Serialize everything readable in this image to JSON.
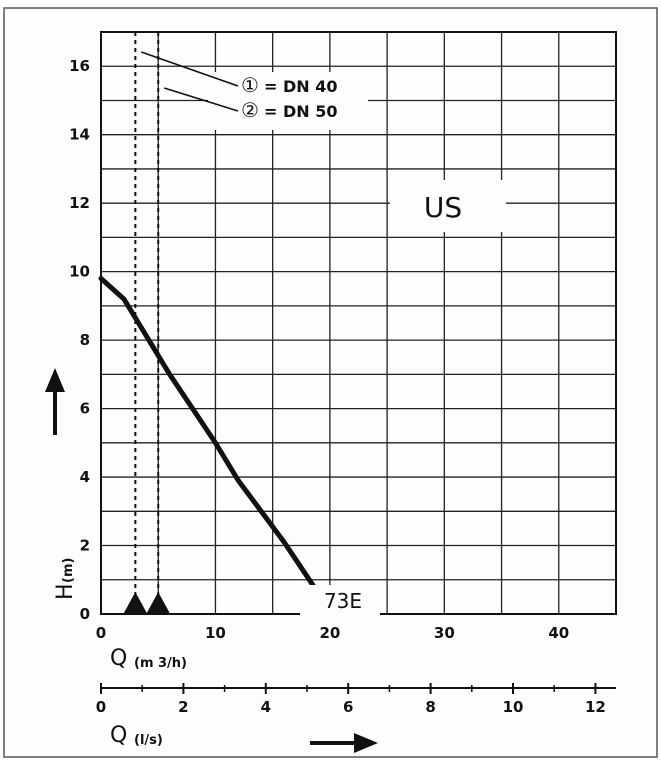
{
  "chart_data": {
    "type": "line",
    "title": "",
    "ylabel": "H",
    "ylabel_unit": "(m)",
    "xlabel": "Q",
    "xlabel_unit": "(m 3/h)",
    "xlabel2": "Q",
    "xlabel2_unit": "(l/s)",
    "xlim": [
      0,
      45
    ],
    "ylim": [
      0,
      17
    ],
    "x2lim": [
      0,
      12.5
    ],
    "xticks": [
      0,
      10,
      20,
      30,
      40
    ],
    "yticks": [
      0,
      2,
      4,
      6,
      8,
      10,
      12,
      14,
      16
    ],
    "x2ticks": [
      0,
      2,
      4,
      6,
      8,
      10,
      12
    ],
    "grid": true,
    "annotation_main": "US",
    "series": [
      {
        "name": "73E",
        "x": [
          0,
          2,
          4,
          6,
          8,
          10,
          12,
          14,
          16,
          18,
          19.2
        ],
        "y": [
          9.8,
          9.2,
          8.1,
          7.0,
          6.0,
          5.0,
          3.9,
          3.0,
          2.1,
          1.1,
          0.5
        ]
      }
    ],
    "dn_lines": [
      {
        "id": "①",
        "label": "= DN 40",
        "x": 3
      },
      {
        "id": "②",
        "label": "= DN 50",
        "x": 5
      }
    ]
  }
}
